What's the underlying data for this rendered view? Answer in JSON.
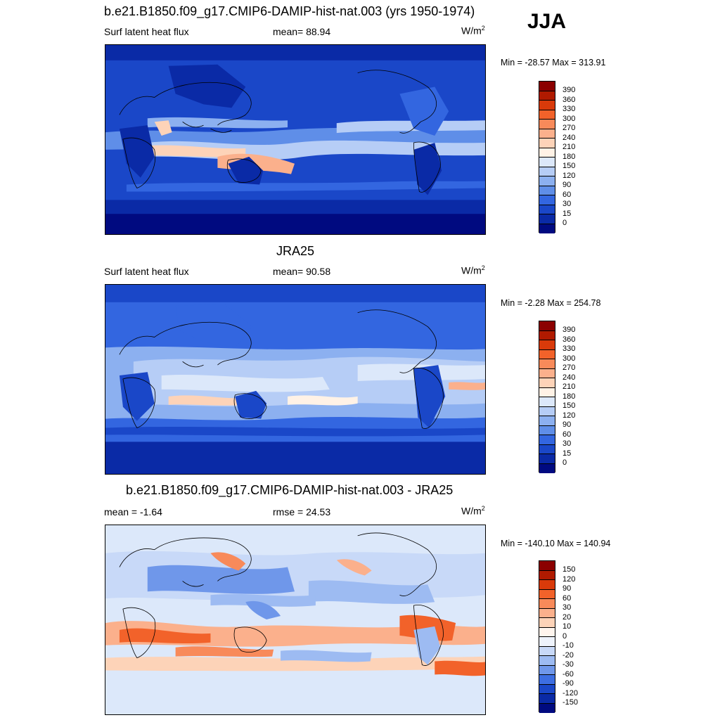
{
  "season": "JJA",
  "panels": [
    {
      "title": "b.e21.B1850.f09_g17.CMIP6-DAMIP-hist-nat.003 (yrs 1950-1974)",
      "left_label": "Surf latent heat flux",
      "mid_label": "mean=  88.94",
      "unit_base": "W/m",
      "unit_exp": "2",
      "minmax": "Min = -28.57 Max = 313.91",
      "colorbar_labels": [
        "390",
        "360",
        "330",
        "300",
        "270",
        "240",
        "210",
        "180",
        "150",
        "120",
        "90",
        "60",
        "30",
        "15",
        "0"
      ],
      "colorbar_colors": [
        "#8b0000",
        "#b01a00",
        "#d93a0a",
        "#f2622a",
        "#f88a5a",
        "#fbb08c",
        "#fdd3b8",
        "#fff2e6",
        "#dce8fa",
        "#b6cdf6",
        "#8cb0f0",
        "#5f8ee8",
        "#3366e0",
        "#1a47c8",
        "#0a2aa6",
        "#000a80"
      ]
    },
    {
      "title": "JRA25",
      "left_label": "Surf latent heat flux",
      "mid_label": "mean=  90.58",
      "unit_base": "W/m",
      "unit_exp": "2",
      "minmax": "Min =  -2.28 Max = 254.78",
      "colorbar_labels": [
        "390",
        "360",
        "330",
        "300",
        "270",
        "240",
        "210",
        "180",
        "150",
        "120",
        "90",
        "60",
        "30",
        "15",
        "0"
      ],
      "colorbar_colors": [
        "#8b0000",
        "#b01a00",
        "#d93a0a",
        "#f2622a",
        "#f88a5a",
        "#fbb08c",
        "#fdd3b8",
        "#fff2e6",
        "#dce8fa",
        "#b6cdf6",
        "#8cb0f0",
        "#5f8ee8",
        "#3366e0",
        "#1a47c8",
        "#0a2aa6",
        "#000a80"
      ]
    },
    {
      "title": "b.e21.B1850.f09_g17.CMIP6-DAMIP-hist-nat.003 - JRA25",
      "left_label": "mean =  -1.64",
      "mid_label": "rmse =  24.53",
      "unit_base": "W/m",
      "unit_exp": "2",
      "minmax": "Min = -140.10 Max = 140.94",
      "colorbar_labels": [
        "150",
        "120",
        "90",
        "60",
        "30",
        "20",
        "10",
        "0",
        "-10",
        "-20",
        "-30",
        "-60",
        "-90",
        "-120",
        "-150"
      ],
      "colorbar_colors": [
        "#8b0000",
        "#b01a00",
        "#d93a0a",
        "#f2622a",
        "#f88a5a",
        "#fbb08c",
        "#fdd3b8",
        "#fff5ee",
        "#eef3fc",
        "#c8d9f8",
        "#9dbbf2",
        "#6f97ea",
        "#3d6ee2",
        "#1a47c8",
        "#0a2aa6",
        "#000a80"
      ]
    }
  ]
}
